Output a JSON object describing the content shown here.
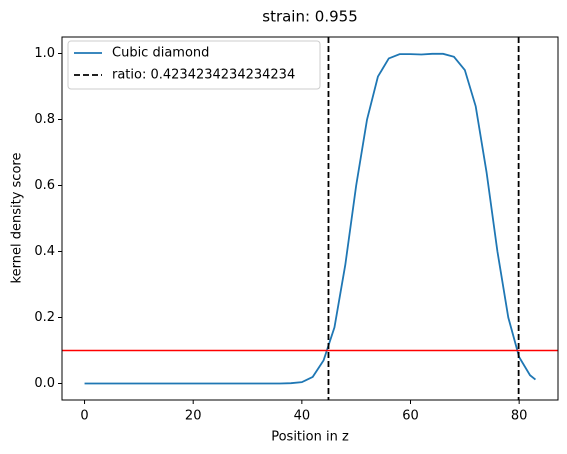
{
  "chart_data": {
    "type": "line",
    "title": "strain: 0.955",
    "x_label": "Position in z",
    "y_label": "kernel density score",
    "x": [
      0,
      2,
      4,
      6,
      8,
      10,
      12,
      14,
      16,
      18,
      20,
      22,
      24,
      26,
      28,
      30,
      32,
      34,
      36,
      38,
      40,
      42,
      44,
      46,
      48,
      50,
      52,
      54,
      56,
      58,
      60,
      62,
      64,
      66,
      68,
      70,
      72,
      74,
      76,
      78,
      80,
      82,
      83
    ],
    "series": [
      {
        "name": "Cubic diamond",
        "color": "#1f77b4",
        "values": [
          0,
          0,
          0,
          0,
          0,
          0,
          0,
          0,
          0,
          0,
          0,
          0,
          0,
          0,
          0,
          0,
          0,
          0,
          0,
          0.001,
          0.004,
          0.02,
          0.07,
          0.17,
          0.36,
          0.6,
          0.8,
          0.93,
          0.985,
          0.998,
          0.998,
          0.997,
          0.999,
          0.999,
          0.99,
          0.95,
          0.84,
          0.64,
          0.4,
          0.2,
          0.08,
          0.025,
          0.012
        ]
      }
    ],
    "vlines": {
      "name": "ratio: 0.4234234234234234",
      "color": "#000000",
      "values": [
        44.9,
        79.9
      ]
    },
    "hlines": {
      "color": "#ff0000",
      "values": [
        0.1
      ]
    },
    "xlim": [
      -4.15,
      87.15
    ],
    "ylim": [
      -0.05,
      1.05
    ],
    "xticks": [
      0,
      20,
      40,
      60,
      80
    ],
    "yticks": [
      {
        "value": 0,
        "label": "0.0"
      },
      {
        "value": 0.2,
        "label": "0.2"
      },
      {
        "value": 0.4,
        "label": "0.4"
      },
      {
        "value": 0.6,
        "label": "0.6"
      },
      {
        "value": 0.8,
        "label": "0.8"
      },
      {
        "value": 1,
        "label": "1.0"
      }
    ],
    "legend": "upper left",
    "grid": false
  }
}
